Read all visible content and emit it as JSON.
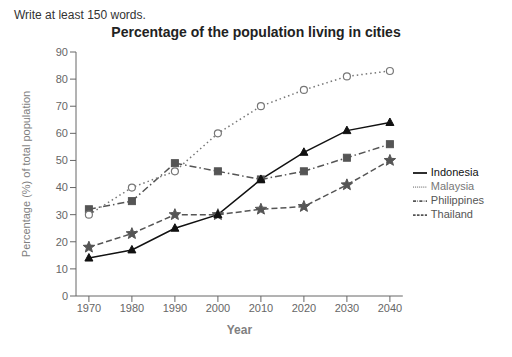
{
  "chart_data": {
    "type": "line",
    "title": "Percentage of the population living in cities",
    "annotations": [
      "Write at least 150 words."
    ],
    "xlabel": "Year",
    "ylabel": "Percentage (%) of total population",
    "x": [
      1970,
      1980,
      1990,
      2000,
      2010,
      2020,
      2030,
      2040
    ],
    "xlim": [
      1967,
      2043
    ],
    "xticks": [
      1970,
      1980,
      1990,
      2000,
      2010,
      2020,
      2030,
      2040
    ],
    "ylim": [
      0,
      90
    ],
    "yticks": [
      0,
      10,
      20,
      30,
      40,
      50,
      60,
      70,
      80,
      90
    ],
    "grid": false,
    "legend": "right",
    "series": [
      {
        "name": "Philippines",
        "color": "#555555",
        "line_style": "dashdot",
        "marker": "square",
        "values": [
          32,
          35,
          49,
          46,
          43,
          46,
          51,
          56
        ]
      },
      {
        "name": "Malaysia",
        "color": "#777777",
        "line_style": "dotted",
        "marker": "circle",
        "values": [
          30,
          40,
          46,
          60,
          70,
          76,
          81,
          83
        ]
      },
      {
        "name": "Thailand",
        "color": "#555555",
        "line_style": "dashed",
        "marker": "star",
        "values": [
          18,
          23,
          30,
          30,
          32,
          33,
          41,
          50
        ]
      },
      {
        "name": "Indonesia",
        "color": "#111111",
        "line_style": "solid",
        "marker": "triangle",
        "values": [
          14,
          17,
          25,
          30,
          43,
          53,
          61,
          64
        ]
      }
    ]
  }
}
